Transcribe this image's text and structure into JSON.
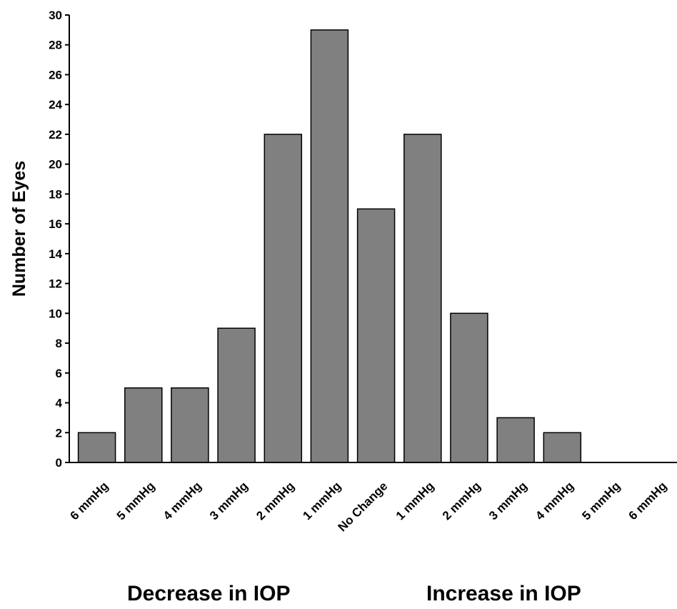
{
  "chart_data": {
    "type": "bar",
    "title": "",
    "ylabel": "Number of Eyes",
    "xlabel": "",
    "categories": [
      "6 mmHg",
      "5 mmHg",
      "4 mmHg",
      "3 mmHg",
      "2 mmHg",
      "1 mmHg",
      "No Change",
      "1 mmHg",
      "2 mmHg",
      "3 mmHg",
      "4 mmHg",
      "5 mmHg",
      "6 mmHg"
    ],
    "values": [
      2,
      5,
      5,
      9,
      22,
      29,
      17,
      22,
      10,
      3,
      2,
      0,
      0
    ],
    "ylim": [
      0,
      30
    ],
    "yticks": [
      0,
      2,
      4,
      6,
      8,
      10,
      12,
      14,
      16,
      18,
      20,
      22,
      24,
      26,
      28,
      30
    ],
    "group_labels": {
      "decrease": "Decrease in IOP",
      "increase": "Increase in IOP"
    },
    "grid": false,
    "legend": "none",
    "colors": {
      "bar_fill": "#808080",
      "bar_stroke": "#000000",
      "axis": "#000000"
    }
  }
}
